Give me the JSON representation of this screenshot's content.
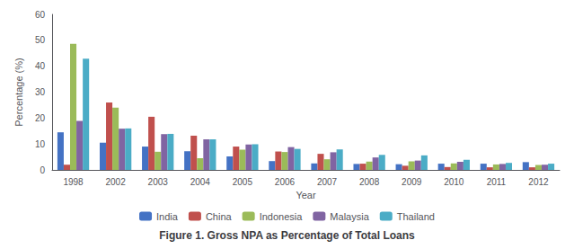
{
  "chart_data": {
    "type": "bar",
    "title": "Figure 1. Gross NPA as Percentage of Total Loans",
    "x_label": "Year",
    "y_label": "Percentage (%)",
    "categories": [
      "1998",
      "2002",
      "2003",
      "2004",
      "2005",
      "2006",
      "2007",
      "2008",
      "2009",
      "2010",
      "2011",
      "2012"
    ],
    "series": [
      {
        "name": "India",
        "color": "#4472C4",
        "values": [
          14.5,
          10.5,
          9.0,
          7.2,
          5.2,
          3.4,
          2.5,
          2.3,
          2.2,
          2.4,
          2.4,
          3.0
        ]
      },
      {
        "name": "China",
        "color": "#C0504D",
        "values": [
          2.0,
          26.0,
          20.5,
          13.2,
          9.0,
          7.1,
          6.2,
          2.4,
          1.6,
          1.1,
          1.0,
          1.0
        ]
      },
      {
        "name": "Indonesia",
        "color": "#9BBB59",
        "values": [
          48.6,
          24.0,
          7.0,
          4.5,
          7.8,
          6.9,
          4.1,
          3.2,
          3.3,
          2.5,
          2.1,
          1.9
        ]
      },
      {
        "name": "Malaysia",
        "color": "#8064A2",
        "values": [
          18.9,
          15.9,
          13.8,
          11.8,
          9.8,
          8.8,
          6.8,
          4.8,
          3.6,
          3.1,
          2.3,
          2.0
        ]
      },
      {
        "name": "Thailand",
        "color": "#4BACC6",
        "values": [
          42.9,
          16.0,
          13.9,
          11.8,
          9.9,
          8.1,
          7.9,
          5.8,
          5.6,
          3.9,
          2.7,
          2.4
        ]
      }
    ],
    "ylim": [
      0,
      60
    ],
    "yticks": [
      0,
      10,
      20,
      30,
      40,
      50,
      60
    ],
    "grid": false,
    "legend": "bottom"
  }
}
